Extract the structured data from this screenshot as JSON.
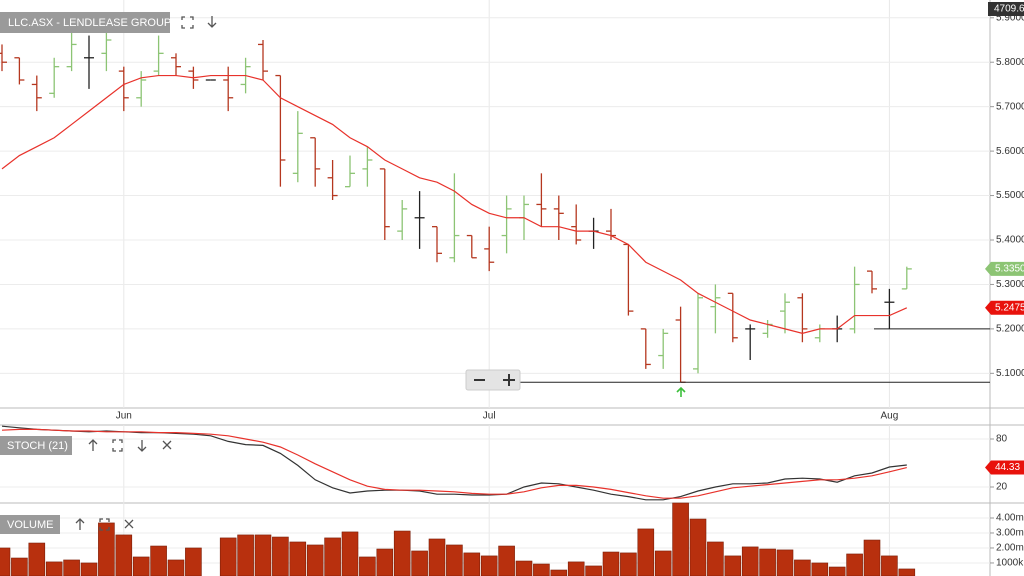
{
  "chart_data": [
    {
      "type": "ohlc",
      "title": "LLC.ASX - LENDLEASE GROUP",
      "header_value": "4709.60",
      "categories": [
        null,
        null,
        null,
        null,
        null,
        null,
        null,
        "Jun",
        null,
        null,
        null,
        null,
        null,
        null,
        null,
        null,
        null,
        null,
        null,
        null,
        null,
        null,
        null,
        null,
        null,
        null,
        null,
        null,
        "Jul",
        null,
        null,
        null,
        null,
        null,
        null,
        null,
        null,
        null,
        null,
        null,
        null,
        null,
        null,
        null,
        null,
        null,
        null,
        null,
        null,
        null,
        null,
        "Aug",
        null
      ],
      "open": [
        5.82,
        5.81,
        5.75,
        5.73,
        5.79,
        5.81,
        5.82,
        5.78,
        5.72,
        5.78,
        5.81,
        5.78,
        5.76,
        5.76,
        5.75,
        5.84,
        5.77,
        5.55,
        5.63,
        5.54,
        5.52,
        5.56,
        5.56,
        5.42,
        5.45,
        5.43,
        5.36,
        5.41,
        5.38,
        5.41,
        5.45,
        5.48,
        5.47,
        5.43,
        5.42,
        5.42,
        5.39,
        5.2,
        5.14,
        5.22,
        5.11,
        5.25,
        5.28,
        5.2,
        5.19,
        5.24,
        5.27,
        5.18,
        5.2,
        5.2,
        5.33,
        5.26,
        5.29
      ],
      "high": [
        5.84,
        5.81,
        5.77,
        5.81,
        5.88,
        5.86,
        5.87,
        5.79,
        5.78,
        5.86,
        5.82,
        5.79,
        5.76,
        5.79,
        5.81,
        5.85,
        5.77,
        5.69,
        5.63,
        5.58,
        5.59,
        5.61,
        5.56,
        5.49,
        5.51,
        5.43,
        5.55,
        5.41,
        5.43,
        5.5,
        5.5,
        5.55,
        5.5,
        5.48,
        5.45,
        5.47,
        5.39,
        5.2,
        5.2,
        5.25,
        5.28,
        5.3,
        5.28,
        5.21,
        5.22,
        5.28,
        5.28,
        5.21,
        5.23,
        5.34,
        5.33,
        5.29,
        5.34
      ],
      "low": [
        5.78,
        5.75,
        5.69,
        5.72,
        5.78,
        5.74,
        5.78,
        5.69,
        5.7,
        5.77,
        5.77,
        5.74,
        5.76,
        5.69,
        5.73,
        5.76,
        5.52,
        5.53,
        5.52,
        5.49,
        5.52,
        5.52,
        5.4,
        5.4,
        5.38,
        5.35,
        5.35,
        5.36,
        5.33,
        5.37,
        5.4,
        5.43,
        5.4,
        5.39,
        5.38,
        5.4,
        5.23,
        5.11,
        5.11,
        5.08,
        5.1,
        5.19,
        5.17,
        5.13,
        5.18,
        5.19,
        5.17,
        5.17,
        5.17,
        5.19,
        5.28,
        5.2,
        5.29
      ],
      "close": [
        5.8,
        5.76,
        5.72,
        5.79,
        5.84,
        5.81,
        5.85,
        5.72,
        5.76,
        5.82,
        5.79,
        5.76,
        5.76,
        5.72,
        5.79,
        5.78,
        5.58,
        5.64,
        5.56,
        5.5,
        5.55,
        5.58,
        5.43,
        5.47,
        5.45,
        5.37,
        5.41,
        5.36,
        5.35,
        5.47,
        5.48,
        5.47,
        5.46,
        5.4,
        5.42,
        5.41,
        5.24,
        5.12,
        5.19,
        5.08,
        5.27,
        5.27,
        5.18,
        5.2,
        5.21,
        5.26,
        5.2,
        5.2,
        5.2,
        5.3,
        5.29,
        5.26,
        5.335
      ],
      "up_color": "#8cc474",
      "down_color": "#b5371f",
      "flat_color": "#222222",
      "ma": {
        "color": "#e8322b",
        "values": [
          5.56,
          5.59,
          5.61,
          5.63,
          5.66,
          5.69,
          5.72,
          5.75,
          5.765,
          5.77,
          5.77,
          5.765,
          5.77,
          5.77,
          5.77,
          5.76,
          5.72,
          5.7,
          5.68,
          5.66,
          5.63,
          5.61,
          5.58,
          5.56,
          5.54,
          5.53,
          5.51,
          5.48,
          5.46,
          5.45,
          5.45,
          5.43,
          5.43,
          5.42,
          5.42,
          5.41,
          5.39,
          5.35,
          5.33,
          5.31,
          5.28,
          5.26,
          5.24,
          5.22,
          5.21,
          5.2,
          5.19,
          5.2,
          5.2,
          5.23,
          5.23,
          5.23,
          5.2475
        ]
      },
      "price_tags": [
        {
          "value": 5.335,
          "label": "5.3350",
          "color": "#8cc474"
        },
        {
          "value": 5.2475,
          "label": "5.2475",
          "color": "#e8120c"
        }
      ],
      "hlines": [
        5.2,
        5.08
      ],
      "ylim": [
        5.022,
        5.94
      ],
      "yticks": [
        {
          "value": 5.1,
          "label": "5.1000"
        },
        {
          "value": 5.2,
          "label": "5.2000"
        },
        {
          "value": 5.3,
          "label": "5.3000"
        },
        {
          "value": 5.4,
          "label": "5.4000"
        },
        {
          "value": 5.5,
          "label": "5.5000"
        },
        {
          "value": 5.6,
          "label": "5.6000"
        },
        {
          "value": 5.7,
          "label": "5.7000"
        },
        {
          "value": 5.8,
          "label": "5.8000"
        },
        {
          "value": 5.9,
          "label": "5.9000"
        }
      ],
      "grid": true
    },
    {
      "type": "line",
      "title": "STOCH (21)",
      "series": [
        {
          "color": "#333333",
          "values": [
            96,
            94,
            92,
            91,
            90,
            89,
            90,
            89,
            88,
            88,
            87,
            86,
            84,
            77,
            73,
            72,
            62,
            47,
            29,
            19,
            12.5,
            15,
            16,
            16,
            15,
            11,
            11,
            10,
            10,
            11,
            20,
            25,
            24,
            20,
            16,
            11,
            8,
            4,
            4,
            8,
            15,
            20,
            24,
            24,
            25,
            30,
            31,
            30,
            26,
            34,
            37.5,
            45,
            47.5
          ]
        },
        {
          "color": "#e8322b",
          "values": [
            91,
            92,
            92,
            91,
            90,
            90,
            89,
            89,
            89,
            88,
            88,
            87,
            86,
            84,
            80,
            76,
            70,
            60,
            49,
            39,
            29,
            21,
            17,
            16,
            16,
            15,
            14,
            12,
            11,
            11,
            14,
            19,
            22,
            22,
            20,
            17,
            13,
            9,
            6,
            6,
            9,
            14,
            19,
            21,
            23,
            25,
            27,
            29,
            29,
            31,
            34,
            39,
            44.33
          ],
          "value_labels": [
            null,
            null,
            null,
            null,
            null,
            null,
            null,
            null,
            null,
            null,
            null,
            null,
            null,
            null,
            null,
            null,
            null,
            null,
            null,
            null,
            null,
            null,
            null,
            null,
            null,
            null,
            null,
            null,
            null,
            null,
            null,
            null,
            null,
            null,
            null,
            null,
            null,
            null,
            null,
            null,
            null,
            null,
            null,
            null,
            null,
            null,
            null,
            null,
            null,
            null,
            null,
            null,
            "44.33"
          ]
        }
      ],
      "ylim": [
        0,
        97.5
      ],
      "yticks": [
        80,
        20
      ],
      "grid": true
    },
    {
      "type": "bar",
      "title": "VOLUME",
      "color": "#b8300e",
      "values": [
        2.0,
        1.33,
        2.33,
        1.07,
        1.2,
        1.0,
        3.67,
        2.87,
        1.4,
        2.13,
        1.2,
        2.0,
        null,
        2.67,
        2.87,
        2.87,
        2.73,
        2.4,
        2.2,
        2.67,
        3.07,
        1.4,
        1.93,
        3.13,
        1.8,
        2.6,
        2.2,
        1.67,
        1.47,
        2.13,
        1.13,
        0.93,
        0.53,
        1.07,
        0.8,
        1.73,
        1.67,
        3.27,
        1.8,
        5.0,
        3.93,
        2.4,
        1.47,
        2.07,
        1.93,
        1.87,
        1.2,
        1.0,
        0.73,
        1.6,
        2.53,
        1.47,
        0.6
      ],
      "ylim": [
        0.13,
        5.0
      ],
      "yticks": [
        {
          "value": 1,
          "label": "1000k"
        },
        {
          "value": 2,
          "label": "2.00m"
        },
        {
          "value": 3,
          "label": "3.00m"
        },
        {
          "value": 4,
          "label": "4.00m"
        }
      ],
      "grid": true
    }
  ]
}
